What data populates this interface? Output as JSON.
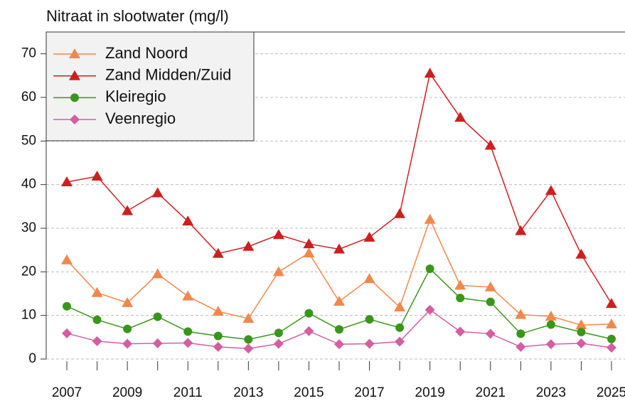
{
  "chart_data": {
    "type": "line",
    "title": "Nitraat in slootwater (mg/l)",
    "x": [
      2007,
      2008,
      2009,
      2010,
      2011,
      2012,
      2013,
      2014,
      2015,
      2016,
      2017,
      2018,
      2019,
      2020,
      2021,
      2022,
      2023,
      2024,
      2025
    ],
    "series": [
      {
        "name": "Zand Noord",
        "color": "#f0884e",
        "marker": "triangle",
        "values": [
          22.7,
          15.2,
          12.9,
          19.5,
          14.4,
          10.9,
          9.3,
          20.0,
          24.3,
          13.2,
          18.4,
          11.9,
          32.0,
          16.9,
          16.5,
          10.2,
          9.8,
          7.8,
          8.0
        ]
      },
      {
        "name": "Zand Midden/Zuid",
        "color": "#cc2020",
        "marker": "triangle",
        "values": [
          40.6,
          41.9,
          34.0,
          38.1,
          31.6,
          24.2,
          25.8,
          28.5,
          26.4,
          25.2,
          27.9,
          33.3,
          65.5,
          55.4,
          49.0,
          29.4,
          38.6,
          24.0,
          12.7
        ]
      },
      {
        "name": "Kleiregio",
        "color": "#3a961a",
        "marker": "circle",
        "values": [
          12.1,
          9.0,
          6.9,
          9.7,
          6.3,
          5.3,
          4.5,
          6.0,
          10.5,
          6.8,
          9.1,
          7.2,
          20.7,
          14.0,
          13.1,
          5.8,
          7.9,
          6.2,
          4.6
        ]
      },
      {
        "name": "Veenregio",
        "color": "#d45ea2",
        "marker": "diamond",
        "values": [
          5.9,
          4.1,
          3.5,
          3.6,
          3.7,
          2.8,
          2.4,
          3.5,
          6.4,
          3.4,
          3.5,
          4.0,
          11.3,
          6.3,
          5.8,
          2.8,
          3.4,
          3.6,
          2.6
        ]
      }
    ],
    "xlim": [
      2007,
      2025
    ],
    "xticks": [
      2007,
      2009,
      2011,
      2013,
      2015,
      2017,
      2019,
      2021,
      2023,
      2025
    ],
    "ylim": [
      0,
      75
    ],
    "yticks": [
      0,
      10,
      20,
      30,
      40,
      50,
      60,
      70
    ],
    "grid": true,
    "legend": "top-left"
  }
}
